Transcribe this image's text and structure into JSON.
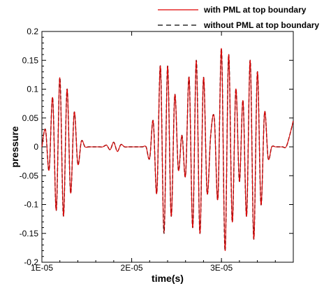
{
  "chart_data": {
    "type": "line",
    "title": "",
    "xlabel": "time(s)",
    "ylabel": "pressure",
    "xlim": [
      1e-05,
      3.8e-05
    ],
    "ylim": [
      -0.2,
      0.2
    ],
    "x_ticks": [
      1e-05,
      2e-05,
      3e-05
    ],
    "x_tick_labels": [
      "1E-05",
      "2E-05",
      "3E-05"
    ],
    "y_ticks": [
      -0.2,
      -0.15,
      -0.1,
      -0.05,
      0,
      0.05,
      0.1,
      0.15,
      0.2
    ],
    "y_tick_labels": [
      "-0.2",
      "-0.15",
      "-0.1",
      "-0.05",
      "0",
      "0.05",
      "0.1",
      "0.15",
      "0.2"
    ],
    "grid": false,
    "legend_position": "top-right",
    "series": [
      {
        "name": "with PML at top boundary",
        "color": "#e00000",
        "style": "solid",
        "x": [
          1e-05,
          1.04e-05,
          1.08e-05,
          1.12e-05,
          1.16e-05,
          1.2e-05,
          1.24e-05,
          1.28e-05,
          1.32e-05,
          1.36e-05,
          1.4e-05,
          1.44e-05,
          1.48e-05,
          1.52e-05,
          1.56e-05,
          1.6e-05,
          1.64e-05,
          1.68e-05,
          1.72e-05,
          1.76e-05,
          1.8e-05,
          1.84e-05,
          1.88e-05,
          1.92e-05,
          1.96e-05,
          2e-05,
          2.04e-05,
          2.08e-05,
          2.12e-05,
          2.16e-05,
          2.2e-05,
          2.24e-05,
          2.28e-05,
          2.32e-05,
          2.36e-05,
          2.4e-05,
          2.44e-05,
          2.48e-05,
          2.52e-05,
          2.56e-05,
          2.6e-05,
          2.64e-05,
          2.68e-05,
          2.72e-05,
          2.76e-05,
          2.8e-05,
          2.84e-05,
          2.88e-05,
          2.92e-05,
          2.96e-05,
          3e-05,
          3.04e-05,
          3.08e-05,
          3.12e-05,
          3.16e-05,
          3.2e-05,
          3.24e-05,
          3.28e-05,
          3.32e-05,
          3.36e-05,
          3.4e-05,
          3.44e-05,
          3.48e-05,
          3.52e-05,
          3.56e-05,
          3.6e-05,
          3.64e-05,
          3.68e-05,
          3.72e-05,
          3.76e-05,
          3.8e-05
        ],
        "values": [
          0.0,
          0.03,
          -0.04,
          0.085,
          -0.11,
          0.12,
          -0.12,
          0.1,
          -0.08,
          0.06,
          -0.03,
          0.01,
          0.0,
          0.0,
          0.0,
          0.0,
          0.0,
          0.0,
          0.003,
          -0.005,
          0.008,
          -0.008,
          0.004,
          0.0,
          0.0,
          0.0,
          0.0,
          0.0,
          0.0,
          0.0,
          -0.02,
          0.045,
          -0.08,
          0.14,
          -0.15,
          0.14,
          -0.12,
          0.09,
          -0.04,
          0.02,
          -0.05,
          0.12,
          -0.14,
          0.15,
          -0.15,
          0.12,
          -0.08,
          0.02,
          0.05,
          -0.09,
          0.17,
          -0.18,
          0.16,
          -0.13,
          0.1,
          -0.06,
          0.08,
          -0.12,
          0.15,
          -0.16,
          0.13,
          -0.1,
          0.06,
          -0.02,
          0.0,
          0.0,
          0.0,
          0.0,
          0.0,
          0.02,
          0.045
        ]
      },
      {
        "name": "without PML at top boundary",
        "color": "#000000",
        "style": "dashed",
        "x": [
          1e-05,
          1.04e-05,
          1.08e-05,
          1.12e-05,
          1.16e-05,
          1.2e-05,
          1.24e-05,
          1.28e-05,
          1.32e-05,
          1.36e-05,
          1.4e-05,
          1.44e-05,
          1.48e-05,
          1.52e-05,
          1.56e-05,
          1.6e-05,
          1.64e-05,
          1.68e-05,
          1.72e-05,
          1.76e-05,
          1.8e-05,
          1.84e-05,
          1.88e-05,
          1.92e-05,
          1.96e-05,
          2e-05,
          2.04e-05,
          2.08e-05,
          2.12e-05,
          2.16e-05,
          2.2e-05,
          2.24e-05,
          2.28e-05,
          2.32e-05,
          2.36e-05,
          2.4e-05,
          2.44e-05,
          2.48e-05,
          2.52e-05,
          2.56e-05,
          2.6e-05,
          2.64e-05,
          2.68e-05,
          2.72e-05,
          2.76e-05,
          2.8e-05,
          2.84e-05,
          2.88e-05,
          2.92e-05,
          2.96e-05,
          3e-05,
          3.04e-05,
          3.08e-05,
          3.12e-05,
          3.16e-05,
          3.2e-05,
          3.24e-05,
          3.28e-05,
          3.32e-05,
          3.36e-05,
          3.4e-05,
          3.44e-05,
          3.48e-05,
          3.52e-05,
          3.56e-05,
          3.6e-05,
          3.64e-05,
          3.68e-05,
          3.72e-05,
          3.76e-05,
          3.8e-05
        ],
        "values": [
          0.0,
          0.03,
          -0.04,
          0.085,
          -0.11,
          0.12,
          -0.12,
          0.1,
          -0.08,
          0.06,
          -0.03,
          0.01,
          0.0,
          0.0,
          0.0,
          0.0,
          0.0,
          0.0,
          0.003,
          -0.005,
          0.008,
          -0.008,
          0.004,
          0.0,
          0.0,
          0.0,
          0.0,
          0.0,
          0.0,
          0.0,
          -0.02,
          0.045,
          -0.08,
          0.14,
          -0.15,
          0.14,
          -0.12,
          0.09,
          -0.04,
          0.02,
          -0.05,
          0.12,
          -0.14,
          0.15,
          -0.15,
          0.12,
          -0.08,
          0.02,
          0.05,
          -0.09,
          0.17,
          -0.18,
          0.16,
          -0.13,
          0.1,
          -0.06,
          0.08,
          -0.12,
          0.15,
          -0.16,
          0.13,
          -0.1,
          0.06,
          -0.02,
          0.0,
          0.0,
          0.0,
          0.0,
          0.0,
          0.02,
          0.045
        ]
      }
    ]
  }
}
